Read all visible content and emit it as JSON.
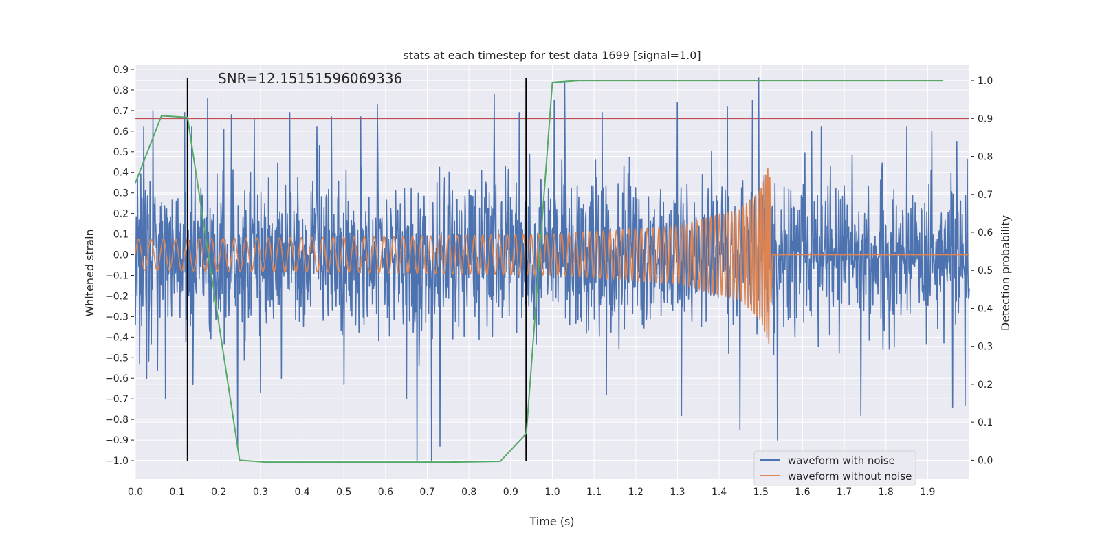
{
  "chart_data": {
    "type": "line",
    "title": "stats at each timestep for test data 1699 [signal=1.0]",
    "annotation": "SNR=12.15151596069336",
    "xlabel": "Time (s)",
    "ylabel": "Whitened strain",
    "y2label": "Detection probability",
    "xlim": [
      0.0,
      2.0
    ],
    "ylim": [
      -1.09,
      0.92
    ],
    "y2lim": [
      -0.05,
      1.04
    ],
    "xticks": [
      0.0,
      0.1,
      0.2,
      0.3,
      0.4,
      0.5,
      0.6,
      0.7,
      0.8,
      0.9,
      1.0,
      1.1,
      1.2,
      1.3,
      1.4,
      1.5,
      1.6,
      1.7,
      1.8,
      1.9
    ],
    "xtick_labels": [
      "0.0",
      "0.1",
      "0.2",
      "0.3",
      "0.4",
      "0.5",
      "0.6",
      "0.7",
      "0.8",
      "0.9",
      "1.0",
      "1.1",
      "1.2",
      "1.3",
      "1.4",
      "1.5",
      "1.6",
      "1.7",
      "1.8",
      "1.9"
    ],
    "yticks": [
      0.9,
      0.8,
      0.7,
      0.6,
      0.5,
      0.4,
      0.3,
      0.2,
      0.1,
      0.0,
      -0.1,
      -0.2,
      -0.3,
      -0.4,
      -0.5,
      -0.6,
      -0.7,
      -0.8,
      -0.9,
      -1.0
    ],
    "ytick_labels": [
      "0.9",
      "0.8",
      "0.7",
      "0.6",
      "0.5",
      "0.4",
      "0.3",
      "0.2",
      "0.1",
      "0.0",
      "−0.1",
      "−0.2",
      "−0.3",
      "−0.4",
      "−0.5",
      "−0.6",
      "−0.7",
      "−0.8",
      "−0.9",
      "−1.0"
    ],
    "y2ticks": [
      1.0,
      0.9,
      0.8,
      0.7,
      0.6,
      0.5,
      0.4,
      0.3,
      0.2,
      0.1,
      0.0
    ],
    "y2tick_labels": [
      "1.0",
      "0.9",
      "0.8",
      "0.7",
      "0.6",
      "0.5",
      "0.4",
      "0.3",
      "0.2",
      "0.1",
      "0.0"
    ],
    "threshold": {
      "axis": "y2",
      "value": 0.9,
      "color": "#c44e52"
    },
    "vlines": [
      {
        "x": 0.125,
        "y_from": -1.0,
        "y_to": 0.86,
        "color": "#000000"
      },
      {
        "x": 0.937,
        "y_from": -1.0,
        "y_to": 0.86,
        "color": "#000000"
      }
    ],
    "series": [
      {
        "name": "waveform with noise",
        "axis": "y1",
        "color": "#4c72b0",
        "x_start": 0.0,
        "x_end": 2.0,
        "n": 2000,
        "approx_amplitude": 0.35,
        "peaks": [
          {
            "x": 0.02,
            "y": 0.62
          },
          {
            "x": 0.027,
            "y": -0.6
          },
          {
            "x": 0.042,
            "y": 0.7
          },
          {
            "x": 0.053,
            "y": -0.56
          },
          {
            "x": 0.072,
            "y": -0.7
          },
          {
            "x": 0.118,
            "y": 0.69
          },
          {
            "x": 0.128,
            "y": -0.2
          },
          {
            "x": 0.135,
            "y": 0.62
          },
          {
            "x": 0.138,
            "y": -0.63
          },
          {
            "x": 0.173,
            "y": 0.76
          },
          {
            "x": 0.23,
            "y": 0.68
          },
          {
            "x": 0.245,
            "y": -0.94
          },
          {
            "x": 0.285,
            "y": 0.66
          },
          {
            "x": 0.3,
            "y": -0.67
          },
          {
            "x": 0.35,
            "y": -0.6
          },
          {
            "x": 0.37,
            "y": 0.69
          },
          {
            "x": 0.435,
            "y": 0.62
          },
          {
            "x": 0.47,
            "y": 0.67
          },
          {
            "x": 0.5,
            "y": -0.63
          },
          {
            "x": 0.54,
            "y": 0.67
          },
          {
            "x": 0.58,
            "y": 0.73
          },
          {
            "x": 0.65,
            "y": -0.7
          },
          {
            "x": 0.675,
            "y": -1.0
          },
          {
            "x": 0.71,
            "y": -1.0
          },
          {
            "x": 0.73,
            "y": -0.93
          },
          {
            "x": 0.86,
            "y": 0.78
          },
          {
            "x": 0.92,
            "y": 0.69
          },
          {
            "x": 1.005,
            "y": 0.75
          },
          {
            "x": 1.03,
            "y": 0.84
          },
          {
            "x": 1.12,
            "y": 0.69
          },
          {
            "x": 1.13,
            "y": -0.68
          },
          {
            "x": 1.3,
            "y": 0.74
          },
          {
            "x": 1.31,
            "y": -0.78
          },
          {
            "x": 1.42,
            "y": 0.72
          },
          {
            "x": 1.45,
            "y": -0.85
          },
          {
            "x": 1.48,
            "y": 0.75
          },
          {
            "x": 1.495,
            "y": 0.86
          },
          {
            "x": 1.54,
            "y": -0.9
          },
          {
            "x": 1.645,
            "y": 0.62
          },
          {
            "x": 1.74,
            "y": -0.78
          },
          {
            "x": 1.85,
            "y": 0.62
          },
          {
            "x": 1.91,
            "y": 0.6
          },
          {
            "x": 1.96,
            "y": -0.74
          },
          {
            "x": 1.97,
            "y": 0.55
          },
          {
            "x": 1.99,
            "y": -0.73
          }
        ]
      },
      {
        "name": "waveform without noise",
        "axis": "y1",
        "color": "#dd8452",
        "x_start": 0.0,
        "x_end": 2.0,
        "description_points": [
          {
            "x": 0.0,
            "amp": 0.075,
            "freq_hz": 33
          },
          {
            "x": 0.5,
            "amp": 0.085,
            "freq_hz": 40
          },
          {
            "x": 1.0,
            "amp": 0.1,
            "freq_hz": 55
          },
          {
            "x": 1.3,
            "amp": 0.14,
            "freq_hz": 75
          },
          {
            "x": 1.45,
            "amp": 0.22,
            "freq_hz": 110
          },
          {
            "x": 1.5,
            "amp": 0.32,
            "freq_hz": 160
          },
          {
            "x": 1.52,
            "amp": 0.44,
            "freq_hz": 220
          },
          {
            "x": 1.53,
            "amp": 0.0,
            "freq_hz": 0
          }
        ]
      },
      {
        "name": "detection probability",
        "axis": "y2",
        "color": "#55a868",
        "x": [
          0.0,
          0.0625,
          0.125,
          0.25,
          0.3125,
          0.375,
          0.4375,
          0.5,
          0.5625,
          0.625,
          0.6875,
          0.75,
          0.8125,
          0.875,
          0.9375,
          1.0,
          1.0625,
          1.125,
          1.1875,
          1.25,
          1.3125,
          1.375,
          1.4375,
          1.5,
          1.5625,
          1.625,
          1.6875,
          1.75,
          1.8125,
          1.875,
          1.9375
        ],
        "values": [
          0.73,
          0.907,
          0.903,
          0.0,
          -0.005,
          -0.005,
          -0.005,
          -0.005,
          -0.005,
          -0.005,
          -0.005,
          -0.005,
          -0.004,
          -0.003,
          0.07,
          0.995,
          1.0,
          1.0,
          1.0,
          1.0,
          1.0,
          1.0,
          1.0,
          1.0,
          1.0,
          1.0,
          1.0,
          1.0,
          1.0,
          1.0,
          1.0
        ]
      }
    ],
    "legend": {
      "placement": "lower-right",
      "entries": [
        {
          "label": "waveform with noise",
          "color": "#4c72b0"
        },
        {
          "label": "waveform without noise",
          "color": "#dd8452"
        }
      ]
    },
    "style": {
      "axes_background": "#eaeaf2",
      "grid_color": "#ffffff",
      "grid": true
    }
  }
}
